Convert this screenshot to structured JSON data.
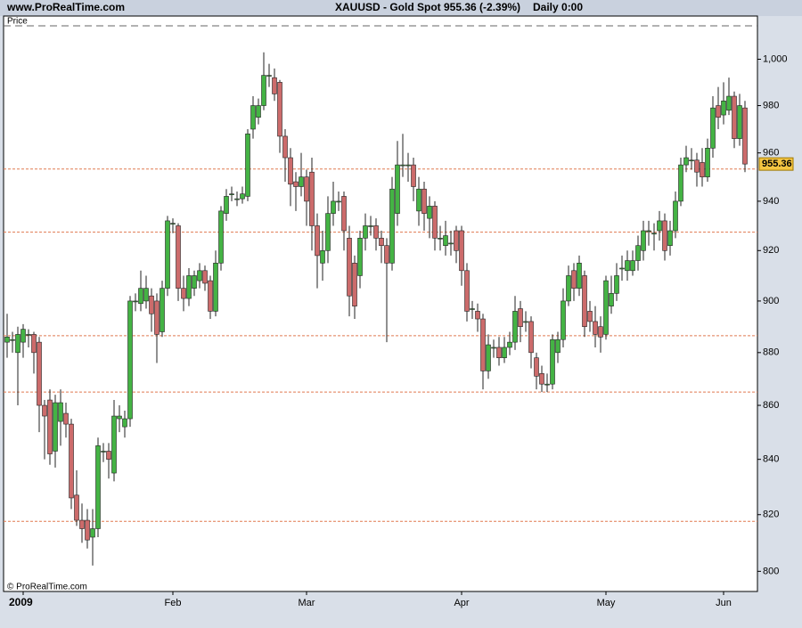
{
  "header": {
    "site": "www.ProRealTime.com",
    "symbol": "XAUUSD - Gold Spot",
    "price": "955.36 (-2.39%)",
    "period": "Daily  0:00"
  },
  "panel_label": "Price",
  "copyright": "© ProRealTime.com",
  "chart_data": {
    "type": "candlestick",
    "log_scale": true,
    "ylim": [
      793,
      1019
    ],
    "yticks": [
      800,
      820,
      840,
      860,
      880,
      900,
      920,
      940,
      960,
      980,
      {
        "value": 1000,
        "label": "1,000"
      }
    ],
    "up_color": "#44b344",
    "down_color": "#cc6b6b",
    "horizontal_lines": [
      953.3,
      927.4,
      886.5,
      865,
      817.6
    ],
    "horizontal_line_color": "#e07a50",
    "last_price_color": "#f5c542",
    "categories": [
      null,
      null,
      null,
      "2009",
      null,
      null,
      null,
      null,
      null,
      null,
      null,
      null,
      null,
      null,
      null,
      null,
      null,
      null,
      null,
      null,
      null,
      null,
      null,
      null,
      null,
      null,
      null,
      null,
      null,
      null,
      null,
      "Feb",
      null,
      null,
      null,
      null,
      null,
      null,
      null,
      null,
      null,
      null,
      null,
      null,
      null,
      null,
      null,
      null,
      null,
      null,
      null,
      null,
      null,
      null,
      null,
      null,
      "Mar",
      null,
      null,
      null,
      null,
      null,
      null,
      null,
      null,
      null,
      null,
      null,
      null,
      null,
      null,
      null,
      null,
      null,
      null,
      null,
      null,
      null,
      null,
      null,
      null,
      null,
      null,
      null,
      null,
      "Apr",
      null,
      null,
      null,
      null,
      null,
      null,
      null,
      null,
      null,
      null,
      null,
      null,
      null,
      null,
      null,
      null,
      null,
      null,
      null,
      null,
      null,
      null,
      null,
      null,
      null,
      null,
      "May",
      null,
      null,
      null,
      null,
      null,
      null,
      null,
      null,
      null,
      null,
      null,
      null,
      null,
      null,
      null,
      null,
      null,
      null,
      null,
      null,
      null,
      "Jun",
      null,
      null,
      null,
      null
    ],
    "open": [
      884,
      885,
      880,
      884,
      887,
      887,
      884,
      860,
      862,
      843,
      854,
      857,
      853,
      827,
      818,
      818,
      812,
      815,
      843,
      843,
      835,
      855,
      852,
      855,
      900,
      899,
      900,
      902,
      900,
      888,
      905,
      931,
      930,
      905,
      901,
      905,
      908,
      912,
      908,
      896,
      915,
      935,
      943,
      941,
      941,
      942,
      970,
      975,
      980,
      993,
      992,
      990,
      967,
      958,
      948,
      946,
      950,
      952,
      930,
      915,
      920,
      935,
      940,
      942,
      925,
      915,
      910,
      925,
      930,
      930,
      925,
      922,
      915,
      935,
      955,
      955,
      955,
      936,
      945,
      933,
      938,
      925,
      922,
      923,
      928,
      928,
      912,
      897,
      896,
      893,
      873,
      882,
      882,
      878,
      882,
      884,
      897,
      892,
      892,
      878,
      872,
      868,
      868,
      880,
      885,
      900,
      912,
      905,
      910,
      896,
      892,
      890,
      887,
      898,
      903,
      913,
      912,
      912,
      916,
      920,
      928,
      927,
      928,
      932,
      922,
      928,
      940,
      955,
      957,
      957,
      956,
      950,
      962,
      980,
      976,
      978,
      984,
      966,
      979
    ],
    "high": [
      895,
      888,
      890,
      891,
      889,
      888,
      886,
      862,
      866,
      864,
      866,
      861,
      855,
      836,
      824,
      822,
      822,
      848,
      846,
      846,
      862,
      860,
      858,
      902,
      903,
      912,
      910,
      905,
      903,
      908,
      934,
      933,
      931,
      910,
      913,
      912,
      915,
      914,
      910,
      920,
      938,
      945,
      946,
      944,
      946,
      970,
      984,
      983,
      1003,
      998,
      996,
      991,
      970,
      962,
      952,
      960,
      953,
      958,
      935,
      928,
      942,
      948,
      944,
      944,
      930,
      918,
      928,
      935,
      934,
      933,
      928,
      925,
      950,
      965,
      968,
      960,
      958,
      950,
      948,
      942,
      940,
      930,
      932,
      928,
      930,
      930,
      915,
      900,
      899,
      895,
      887,
      885,
      886,
      886,
      888,
      902,
      900,
      896,
      894,
      880,
      875,
      872,
      887,
      888,
      905,
      914,
      915,
      918,
      912,
      900,
      898,
      894,
      910,
      910,
      915,
      918,
      920,
      920,
      926,
      932,
      932,
      931,
      936,
      935,
      932,
      944,
      958,
      963,
      962,
      960,
      962,
      966,
      984,
      988,
      990,
      992,
      986,
      985,
      982
    ],
    "low": [
      878,
      880,
      860,
      878,
      882,
      872,
      850,
      840,
      838,
      837,
      845,
      848,
      822,
      816,
      810,
      808,
      802,
      812,
      839,
      833,
      832,
      850,
      848,
      852,
      896,
      896,
      897,
      888,
      876,
      886,
      902,
      927,
      900,
      896,
      898,
      902,
      905,
      904,
      893,
      894,
      912,
      932,
      940,
      938,
      939,
      940,
      966,
      972,
      978,
      988,
      982,
      960,
      948,
      938,
      936,
      942,
      930,
      920,
      905,
      908,
      915,
      930,
      936,
      920,
      894,
      893,
      905,
      920,
      926,
      920,
      915,
      884,
      912,
      930,
      950,
      948,
      940,
      930,
      928,
      925,
      920,
      920,
      918,
      918,
      915,
      906,
      892,
      893,
      888,
      866,
      870,
      878,
      875,
      876,
      879,
      881,
      884,
      888,
      874,
      866,
      865,
      865,
      866,
      876,
      882,
      898,
      900,
      902,
      886,
      888,
      882,
      880,
      885,
      895,
      900,
      908,
      908,
      910,
      912,
      916,
      922,
      920,
      924,
      916,
      918,
      925,
      938,
      952,
      953,
      946,
      946,
      948,
      958,
      970,
      972,
      976,
      962,
      963,
      952
    ],
    "close": [
      886,
      885,
      887,
      889,
      887,
      880,
      860,
      856,
      842,
      861,
      861,
      853,
      826,
      818,
      815,
      811,
      815,
      845,
      843,
      840,
      856,
      856,
      855,
      900,
      900,
      905,
      905,
      895,
      887,
      905,
      932,
      931,
      905,
      901,
      910,
      910,
      912,
      907,
      896,
      915,
      936,
      942,
      943,
      941,
      943,
      968,
      980,
      980,
      993,
      993,
      985,
      967,
      958,
      947,
      946,
      950,
      940,
      930,
      918,
      920,
      935,
      940,
      940,
      928,
      902,
      898,
      925,
      930,
      930,
      925,
      922,
      915,
      945,
      955,
      955,
      955,
      946,
      945,
      935,
      938,
      925,
      925,
      926,
      923,
      920,
      912,
      896,
      897,
      893,
      873,
      883,
      882,
      878,
      882,
      884,
      896,
      890,
      892,
      880,
      871,
      868,
      868,
      885,
      885,
      900,
      910,
      905,
      915,
      890,
      892,
      887,
      886,
      908,
      903,
      910,
      913,
      916,
      916,
      922,
      928,
      928,
      927,
      932,
      920,
      928,
      940,
      955,
      958,
      957,
      952,
      950,
      962,
      979,
      975,
      982,
      984,
      966,
      980,
      955.36
    ]
  }
}
